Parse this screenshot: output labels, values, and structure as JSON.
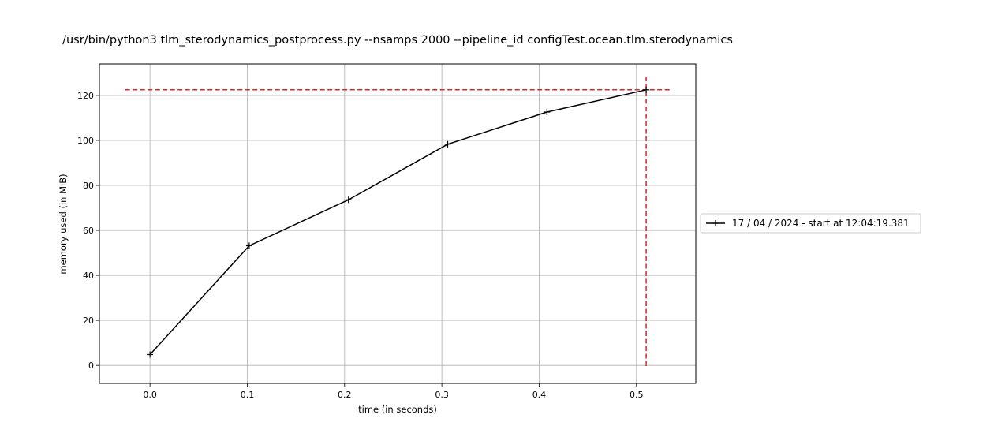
{
  "chart_data": {
    "type": "line",
    "title": "/usr/bin/python3 tlm_sterodynamics_postprocess.py --nsamps 2000 --pipeline_id configTest.ocean.tlm.sterodynamics",
    "xlabel": "time (in seconds)",
    "ylabel": "memory used (in MiB)",
    "xlim": [
      -0.052,
      0.561
    ],
    "ylim": [
      -8,
      134
    ],
    "x_ticks": [
      0.0,
      0.1,
      0.2,
      0.3,
      0.4,
      0.5
    ],
    "x_tick_labels": [
      "0.0",
      "0.1",
      "0.2",
      "0.3",
      "0.4",
      "0.5"
    ],
    "y_ticks": [
      0,
      20,
      40,
      60,
      80,
      100,
      120
    ],
    "y_tick_labels": [
      "0",
      "20",
      "40",
      "60",
      "80",
      "100",
      "120"
    ],
    "grid": true,
    "legend_position": "outside-right",
    "series": [
      {
        "name": "17 / 04 / 2024 - start at 12:04:19.381",
        "color": "#000000",
        "marker": "plus",
        "x": [
          0.0,
          0.102,
          0.204,
          0.306,
          0.408,
          0.51
        ],
        "y": [
          4.8,
          53.2,
          73.6,
          98.3,
          112.6,
          122.5
        ]
      }
    ],
    "reference_lines": {
      "color": "#d62728",
      "style": "dashed",
      "max_memory": 122.5,
      "max_time": 0.51
    }
  }
}
